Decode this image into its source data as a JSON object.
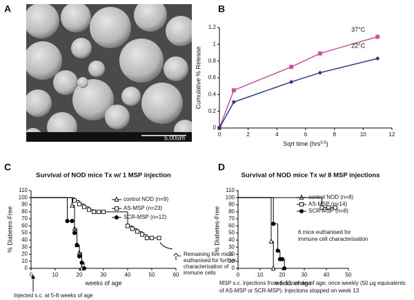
{
  "panel_labels": [
    "A",
    "B",
    "C",
    "D"
  ],
  "image": {
    "scale_bar": "5.00um"
  },
  "chart_data": [
    {
      "type": "line",
      "x_label": {
        "text": "Sqrt time (hrs",
        "sup": "0.5",
        "end": ")"
      },
      "y_label": "Cumulative % Release",
      "x": [
        0,
        1,
        5,
        7,
        11
      ],
      "series": [
        {
          "name": "37°C",
          "color": "#c9509f",
          "marker": "square",
          "values": [
            0,
            0.45,
            0.73,
            0.89,
            1.09
          ]
        },
        {
          "name": "22°C",
          "color": "#283a7c",
          "marker": "diamond",
          "values": [
            0,
            0.31,
            0.55,
            0.66,
            0.83
          ]
        }
      ],
      "xlim": [
        0,
        12
      ],
      "xticks": [
        0,
        2,
        4,
        6,
        8,
        10,
        12
      ],
      "ylim": [
        0,
        1.2
      ],
      "yticks": [
        0,
        0.2,
        0.4,
        0.6,
        0.8,
        1,
        1.2
      ]
    },
    {
      "type": "step",
      "title": "Survival of NOD mice Tx w/ 1 MSP injection",
      "x_label": "weeks of age",
      "y_label": "% Diabetes-Free",
      "series": [
        {
          "name": "control NOD (n=9)",
          "marker": "triangle",
          "filled": false,
          "x": [
            0,
            17,
            18,
            19,
            20,
            21
          ],
          "values": [
            100,
            89,
            56,
            33,
            22,
            0
          ]
        },
        {
          "name": "AS-MSP (n=23)",
          "marker": "square",
          "filled": false,
          "x": [
            0,
            18,
            20,
            22,
            24,
            26,
            28,
            30,
            40,
            42,
            44,
            46,
            48,
            50,
            53
          ],
          "values": [
            100,
            96,
            91,
            87,
            83,
            80,
            80,
            80,
            60,
            56,
            52,
            48,
            43,
            43,
            43
          ]
        },
        {
          "name": "SCR-MSP (n=12)",
          "marker": "circle",
          "filled": true,
          "x": [
            0,
            15,
            17,
            18,
            19,
            20,
            21,
            22
          ],
          "values": [
            100,
            67,
            67,
            50,
            33,
            17,
            8,
            0
          ]
        }
      ],
      "xlim": [
        0,
        60
      ],
      "xticks": [
        0,
        10,
        20,
        30,
        40,
        50,
        60
      ],
      "ylim": [
        0,
        110
      ],
      "yticks": [
        0,
        10,
        20,
        30,
        40,
        50,
        60,
        70,
        80,
        90,
        100,
        110
      ],
      "annotations": [
        [
          "Remaining live mice",
          "euthanised for further",
          "characterisation of",
          "immune cells"
        ],
        [
          "Injected s.c. at 5-8 weeks of age"
        ]
      ]
    },
    {
      "type": "step",
      "title": "Survival of NOD mice Tx w/ 8 MSP injections",
      "x_label": "weeks of age",
      "y_label": "% Diabetes-Free",
      "series": [
        {
          "name": "control NOD (n=8)",
          "marker": "triangle",
          "filled": false,
          "x": [
            0,
            15,
            16
          ],
          "values": [
            100,
            38,
            0
          ]
        },
        {
          "name": "AS-MSP (n=14)",
          "marker": "square",
          "filled": false,
          "x": [
            0,
            38,
            41,
            44
          ],
          "values": [
            100,
            86,
            86,
            86
          ]
        },
        {
          "name": "SCR-MSP (n=8)",
          "marker": "circle",
          "filled": true,
          "x": [
            0,
            16,
            18,
            19,
            20,
            21
          ],
          "values": [
            100,
            63,
            25,
            13,
            13,
            0
          ]
        }
      ],
      "xlim": [
        0,
        50
      ],
      "xticks": [
        0,
        10,
        20,
        30,
        40,
        50
      ],
      "ylim": [
        0,
        110
      ],
      "yticks": [
        0,
        10,
        20,
        30,
        40,
        50,
        60,
        70,
        80,
        90,
        100,
        110
      ],
      "annotations": [
        [
          "6 mice euthanised for",
          "immune cell characterisation"
        ],
        [
          "MSP s.c. injections from 5-13 weeks of age; once weekly (50 μg equivalents",
          "of AS-MSP or SCR-MSP).  Injections stopped on week 13"
        ]
      ]
    }
  ]
}
